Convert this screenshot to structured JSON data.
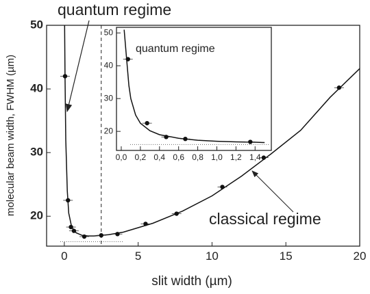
{
  "chart_data": [
    {
      "type": "scatter",
      "xlabel": "slit width (µm)",
      "ylabel": "molecular beam width, FWHM (µm)",
      "xlim": [
        -1.2,
        20
      ],
      "xticks": [
        0,
        5,
        10,
        15,
        20
      ],
      "ylim": [
        15.3,
        50
      ],
      "yticks": [
        20,
        30,
        40,
        50
      ],
      "points": {
        "x": [
          0.05,
          0.25,
          0.45,
          0.65,
          1.35,
          2.5,
          3.6,
          5.5,
          7.6,
          10.7,
          13.5,
          18.6
        ],
        "y": [
          42,
          22.5,
          18.3,
          17.7,
          16.8,
          17.0,
          17.2,
          18.8,
          20.4,
          24.6,
          29.2,
          40.2
        ]
      },
      "fit": {
        "x": [
          0.02,
          0.05,
          0.1,
          0.2,
          0.3,
          0.5,
          0.8,
          1.2,
          1.6,
          2,
          3,
          4,
          6,
          8,
          10,
          12,
          14,
          16,
          18,
          20
        ],
        "y": [
          50,
          42,
          32,
          24,
          20.5,
          18.3,
          17.4,
          17,
          16.9,
          16.9,
          17.1,
          17.5,
          18.9,
          20.8,
          23.2,
          26.3,
          29.8,
          33.5,
          38.7,
          43.2
        ]
      },
      "vline": 2.5,
      "baseline": 16,
      "annotations": [
        "quantum regime",
        "classical regime"
      ]
    },
    {
      "type": "scatter",
      "title": "quantum regime",
      "xlim": [
        -0.05,
        1.57
      ],
      "xticks": [
        {
          "value": 0,
          "label": "0,0"
        },
        {
          "value": 0.2,
          "label": "0,2"
        },
        {
          "value": 0.4,
          "label": "0,4"
        },
        {
          "value": 0.6,
          "label": "0,6"
        },
        {
          "value": 0.8,
          "label": "0,8"
        },
        {
          "value": 1.0,
          "label": "1,0"
        },
        {
          "value": 1.2,
          "label": "1,2"
        },
        {
          "value": 1.4,
          "label": "1,4"
        }
      ],
      "ylim": [
        14.2,
        51.7
      ],
      "yticks": [
        20,
        30,
        40,
        50
      ],
      "points": {
        "x": [
          0.07,
          0.27,
          0.47,
          0.67,
          1.35
        ],
        "y": [
          42,
          22.5,
          18.3,
          17.7,
          16.8
        ]
      },
      "fit": {
        "x": [
          0.03,
          0.05,
          0.08,
          0.1,
          0.15,
          0.2,
          0.3,
          0.4,
          0.6,
          0.8,
          1.0,
          1.2,
          1.4,
          1.5
        ],
        "y": [
          51,
          44,
          34,
          30,
          25,
          22.5,
          20.2,
          19,
          17.9,
          17.3,
          17,
          16.8,
          16.7,
          16.6
        ]
      },
      "baseline": 16
    }
  ]
}
